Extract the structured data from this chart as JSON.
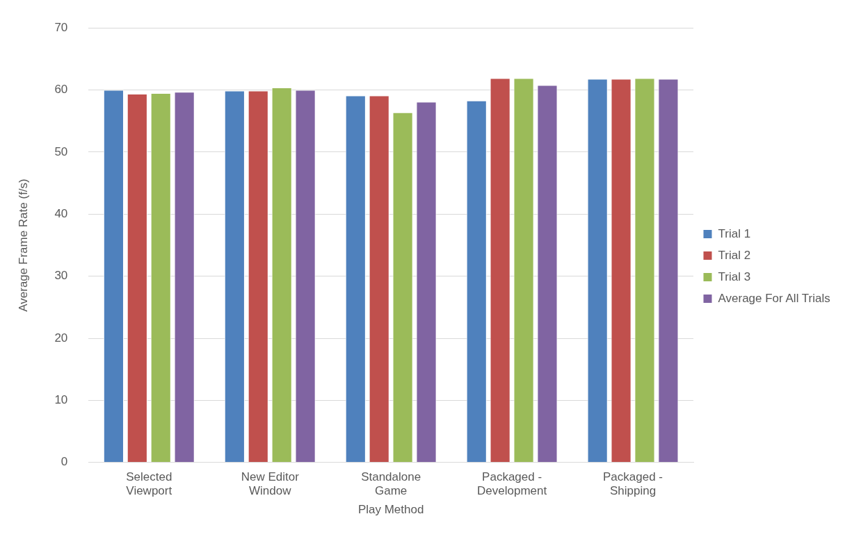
{
  "chart_data": {
    "type": "bar",
    "xlabel": "Play Method",
    "ylabel": "Average Frame Rate (f/s)",
    "categories": [
      "Selected Viewport",
      "New Editor Window",
      "Standalone Game",
      "Packaged - Development",
      "Packaged - Shipping"
    ],
    "series": [
      {
        "name": "Trial 1",
        "color": "#4f81bd",
        "values": [
          60.0,
          59.9,
          59.1,
          58.3,
          61.8
        ]
      },
      {
        "name": "Trial 2",
        "color": "#c0504d",
        "values": [
          59.4,
          59.9,
          59.1,
          61.9,
          61.8
        ]
      },
      {
        "name": "Trial 3",
        "color": "#9bbb59",
        "values": [
          59.5,
          60.4,
          56.4,
          61.9,
          61.9
        ]
      },
      {
        "name": "Average For All Trials",
        "color": "#8064a2",
        "values": [
          59.7,
          60.0,
          58.1,
          60.8,
          61.8
        ]
      }
    ],
    "ylim": [
      0,
      70
    ],
    "yticks": [
      0,
      10,
      20,
      30,
      40,
      50,
      60,
      70
    ],
    "grid": "y",
    "legend": "right"
  }
}
